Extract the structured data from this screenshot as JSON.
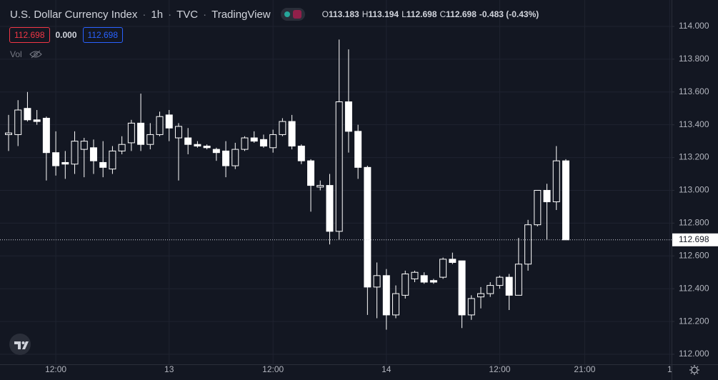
{
  "chart_data": {
    "type": "candlestick",
    "title": "U.S. Dollar Currency Index",
    "interval": "1h",
    "exchange": "TVC",
    "source": "TradingView",
    "ohlc_legend": [
      {
        "label": "O",
        "value": "113.183"
      },
      {
        "label": "H",
        "value": "113.194"
      },
      {
        "label": "L",
        "value": "112.698"
      },
      {
        "label": "C",
        "value": "112.698"
      }
    ],
    "change": "-0.483 (-0.43%)",
    "price_badges": [
      "112.698",
      "0.000",
      "112.698"
    ],
    "volume_label": "Vol",
    "categories": [
      null,
      null,
      null,
      null,
      null,
      "12:00",
      null,
      null,
      null,
      null,
      null,
      null,
      null,
      null,
      null,
      null,
      null,
      "13",
      null,
      null,
      null,
      null,
      null,
      null,
      null,
      null,
      null,
      null,
      "12:00",
      null,
      null,
      null,
      null,
      null,
      null,
      null,
      null,
      null,
      null,
      null,
      "14",
      null,
      null,
      null,
      null,
      null,
      null,
      null,
      null,
      null,
      null,
      null,
      "12:00",
      null,
      null,
      null,
      null,
      null,
      null,
      null,
      null,
      "21:00",
      null,
      null,
      null,
      null,
      null,
      null,
      null,
      null,
      "1"
    ],
    "open": [
      113.34,
      113.34,
      113.5,
      113.43,
      113.44,
      113.23,
      113.17,
      113.16,
      113.25,
      113.26,
      113.17,
      113.13,
      113.24,
      113.29,
      113.41,
      113.28,
      113.34,
      113.46,
      113.32,
      113.32,
      113.28,
      113.27,
      113.25,
      113.24,
      113.15,
      113.25,
      113.32,
      113.31,
      113.26,
      113.34,
      113.42,
      113.27,
      113.18,
      113.02,
      113.03,
      112.75,
      113.54,
      113.36,
      113.14,
      112.41,
      112.48,
      112.24,
      112.36,
      112.46,
      112.48,
      112.45,
      112.47,
      112.58,
      112.57,
      112.24,
      112.35,
      112.37,
      112.42,
      112.47,
      112.36,
      112.55,
      112.79,
      113.0,
      112.93,
      113.18,
      null,
      null,
      null,
      null,
      null,
      null,
      null,
      null,
      null,
      null,
      null
    ],
    "high": [
      113.46,
      113.55,
      113.6,
      113.49,
      113.45,
      113.36,
      113.24,
      113.36,
      113.32,
      113.31,
      113.3,
      113.27,
      113.33,
      113.43,
      113.59,
      113.41,
      113.48,
      113.49,
      113.41,
      113.38,
      113.3,
      113.28,
      113.26,
      113.3,
      113.29,
      113.33,
      113.36,
      113.34,
      113.37,
      113.44,
      113.46,
      113.28,
      113.19,
      113.06,
      113.1,
      113.92,
      113.86,
      113.4,
      113.15,
      112.56,
      112.52,
      112.42,
      112.51,
      112.51,
      112.5,
      112.46,
      112.59,
      112.62,
      112.57,
      112.36,
      112.41,
      112.44,
      112.48,
      112.49,
      112.71,
      112.82,
      113.0,
      113.04,
      113.27,
      113.19,
      null,
      null,
      null,
      null,
      null,
      null,
      null,
      null,
      null,
      null,
      null
    ],
    "low": [
      113.24,
      113.27,
      113.42,
      113.4,
      113.06,
      113.09,
      113.07,
      113.1,
      113.08,
      113.1,
      113.08,
      113.1,
      113.22,
      113.24,
      113.24,
      113.25,
      113.33,
      113.3,
      113.06,
      113.22,
      113.26,
      113.25,
      113.18,
      113.08,
      113.13,
      113.24,
      113.29,
      113.26,
      113.23,
      113.33,
      113.25,
      113.16,
      112.87,
      113.0,
      112.67,
      112.7,
      113.23,
      113.07,
      112.24,
      112.22,
      112.15,
      112.22,
      112.34,
      112.44,
      112.43,
      112.43,
      112.46,
      112.55,
      112.16,
      112.21,
      112.28,
      112.35,
      112.4,
      112.27,
      112.36,
      112.51,
      112.78,
      112.7,
      112.88,
      112.698,
      null,
      null,
      null,
      null,
      null,
      null,
      null,
      null,
      null,
      null,
      null
    ],
    "close": [
      113.35,
      113.49,
      113.43,
      113.42,
      113.23,
      113.15,
      113.16,
      113.3,
      113.3,
      113.18,
      113.14,
      113.24,
      113.28,
      113.41,
      113.28,
      113.34,
      113.45,
      113.38,
      113.39,
      113.28,
      113.27,
      113.26,
      113.23,
      113.15,
      113.25,
      113.32,
      113.3,
      113.27,
      113.34,
      113.42,
      113.27,
      113.18,
      113.03,
      113.03,
      112.75,
      113.54,
      113.36,
      113.14,
      112.41,
      112.48,
      112.24,
      112.37,
      112.49,
      112.5,
      112.44,
      112.44,
      112.58,
      112.56,
      112.24,
      112.34,
      112.37,
      112.42,
      112.47,
      112.36,
      112.55,
      112.79,
      113.0,
      112.93,
      113.18,
      112.698,
      null,
      null,
      null,
      null,
      null,
      null,
      null,
      null,
      null,
      null,
      null
    ],
    "last_price": 112.698,
    "ylim": [
      111.939,
      114.161
    ],
    "yticks": [
      {
        "value": 112.0,
        "label": "112.000"
      },
      {
        "value": 112.2,
        "label": "112.200"
      },
      {
        "value": 112.4,
        "label": "112.400"
      },
      {
        "value": 112.6,
        "label": "112.600"
      },
      {
        "value": 112.8,
        "label": "112.800"
      },
      {
        "value": 113.0,
        "label": "113.000"
      },
      {
        "value": 113.2,
        "label": "113.200"
      },
      {
        "value": 113.4,
        "label": "113.400"
      },
      {
        "value": 113.6,
        "label": "113.600"
      },
      {
        "value": 113.8,
        "label": "113.800"
      },
      {
        "value": 114.0,
        "label": "114.000"
      }
    ],
    "grid": true,
    "up_color": "#ffffff",
    "down_color": "#ffffff",
    "background": "#131722"
  }
}
